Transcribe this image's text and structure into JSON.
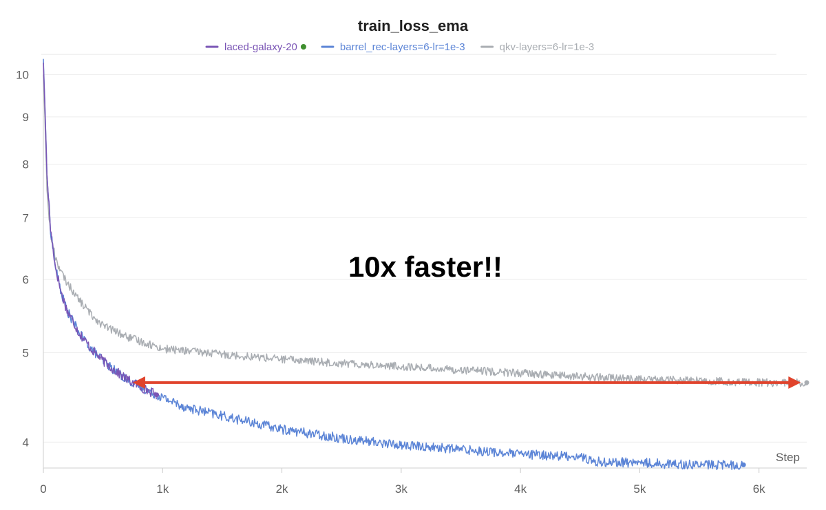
{
  "chart_data": {
    "type": "line",
    "title": "train_loss_ema",
    "xlabel": "Step",
    "ylabel": "",
    "xlim": [
      0,
      6400
    ],
    "ylim": [
      3.75,
      10.5
    ],
    "yscale": "log",
    "grid": true,
    "legend_position": "top-center",
    "x_ticks": [
      0,
      1000,
      2000,
      3000,
      4000,
      5000,
      6000
    ],
    "x_tick_labels": [
      "0",
      "1k",
      "2k",
      "3k",
      "4k",
      "5k",
      "6k"
    ],
    "y_ticks": [
      4,
      5,
      6,
      7,
      8,
      9,
      10
    ],
    "y_tick_labels": [
      "4",
      "5",
      "6",
      "7",
      "8",
      "9",
      "10"
    ],
    "series": [
      {
        "name": "laced-galaxy-20",
        "color": "#7a55b5",
        "status_dot_color": "#3f8f2f",
        "x": [
          0,
          30,
          60,
          100,
          150,
          200,
          300,
          400,
          500,
          600,
          700,
          800,
          950
        ],
        "y": [
          10.3,
          7.8,
          6.8,
          6.2,
          5.8,
          5.55,
          5.25,
          5.05,
          4.9,
          4.78,
          4.68,
          4.6,
          4.5
        ]
      },
      {
        "name": "barrel_rec-layers=6-lr=1e-3",
        "color": "#5b84d6",
        "x": [
          0,
          30,
          60,
          100,
          150,
          200,
          300,
          400,
          500,
          600,
          700,
          800,
          1000,
          1200,
          1500,
          2000,
          2500,
          3000,
          3500,
          4000,
          4500,
          4550,
          4600,
          5000,
          5500,
          5870
        ],
        "y": [
          10.4,
          7.8,
          6.8,
          6.2,
          5.8,
          5.55,
          5.25,
          5.05,
          4.9,
          4.78,
          4.68,
          4.6,
          4.47,
          4.36,
          4.27,
          4.13,
          4.04,
          3.97,
          3.93,
          3.88,
          3.86,
          3.84,
          3.81,
          3.8,
          3.78,
          3.78
        ]
      },
      {
        "name": "qkv-layers=6-lr=1e-3",
        "color": "#a9adb2",
        "x": [
          0,
          30,
          60,
          100,
          150,
          200,
          300,
          400,
          500,
          700,
          1000,
          1500,
          2000,
          2500,
          3000,
          3500,
          4000,
          4500,
          5000,
          5500,
          6000,
          6400
        ],
        "y": [
          10.0,
          7.5,
          6.7,
          6.35,
          6.1,
          5.95,
          5.7,
          5.5,
          5.35,
          5.2,
          5.05,
          4.98,
          4.92,
          4.87,
          4.83,
          4.79,
          4.75,
          4.71,
          4.68,
          4.66,
          4.64,
          4.64
        ]
      }
    ],
    "annotations": [
      {
        "text": "10x faster!!",
        "type": "label"
      },
      {
        "type": "double-arrow",
        "color": "#e0432c",
        "x_start": 750,
        "x_end": 6350,
        "y": 4.64
      }
    ]
  }
}
